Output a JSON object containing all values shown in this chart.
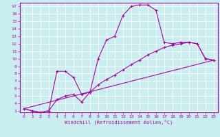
{
  "xlabel": "Windchill (Refroidissement éolien,°C)",
  "bg_color": "#c8eef0",
  "line_color": "#aa00aa",
  "grid_color": "#ffffff",
  "xlim": [
    -0.5,
    23.5
  ],
  "ylim": [
    2.8,
    17.5
  ],
  "xticks": [
    0,
    1,
    2,
    3,
    4,
    5,
    6,
    7,
    8,
    9,
    10,
    11,
    12,
    13,
    14,
    15,
    16,
    17,
    18,
    19,
    20,
    21,
    22,
    23
  ],
  "yticks": [
    3,
    4,
    5,
    6,
    7,
    8,
    9,
    10,
    11,
    12,
    13,
    14,
    15,
    16,
    17
  ],
  "line1_x": [
    0,
    1,
    2,
    3,
    4,
    5,
    6,
    7,
    8,
    9,
    10,
    11,
    12,
    13,
    14,
    15,
    16,
    17,
    18,
    19,
    20,
    21,
    22,
    23
  ],
  "line1_y": [
    3.3,
    3.0,
    2.8,
    3.0,
    8.3,
    8.3,
    7.5,
    5.2,
    5.5,
    10.0,
    12.5,
    13.0,
    15.8,
    17.0,
    17.2,
    17.2,
    16.5,
    12.2,
    12.0,
    12.2,
    12.2,
    12.0,
    10.0,
    9.8
  ],
  "line2_x": [
    0,
    1,
    2,
    3,
    4,
    5,
    6,
    7,
    8,
    9,
    10,
    11,
    12,
    13,
    14,
    15,
    16,
    17,
    18,
    19,
    20,
    21,
    22,
    23
  ],
  "line2_y": [
    3.3,
    3.0,
    2.8,
    3.0,
    4.5,
    5.0,
    5.2,
    4.2,
    5.5,
    6.5,
    7.2,
    7.8,
    8.5,
    9.2,
    9.8,
    10.5,
    11.0,
    11.5,
    11.8,
    12.0,
    12.2,
    12.0,
    10.0,
    9.8
  ],
  "line3_x": [
    0,
    23
  ],
  "line3_y": [
    3.3,
    9.8
  ]
}
